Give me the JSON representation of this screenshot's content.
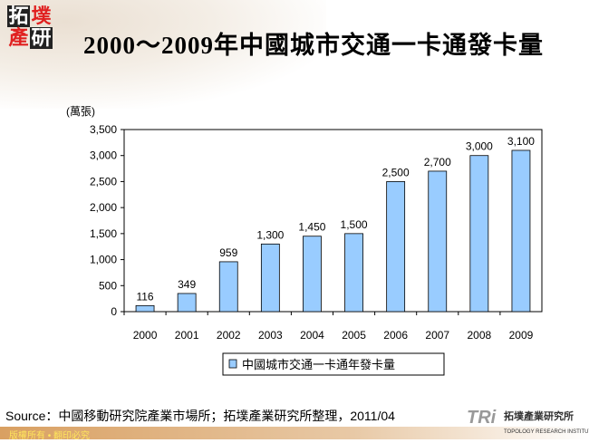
{
  "logo": {
    "chars": [
      "拓",
      "墣",
      "產",
      "研"
    ]
  },
  "title": "2000～2009年中國城市交通一卡通發卡量",
  "chart_data": {
    "type": "bar",
    "title": "2000～2009年中國城市交通一卡通發卡量",
    "ylabel": "(萬張)",
    "categories": [
      "2000",
      "2001",
      "2002",
      "2003",
      "2004",
      "2005",
      "2006",
      "2007",
      "2008",
      "2009"
    ],
    "series": [
      {
        "name": "中國城市交通一卡通年發卡量",
        "values": [
          116,
          349,
          959,
          1300,
          1450,
          1500,
          2500,
          2700,
          3000,
          3100
        ]
      }
    ],
    "data_labels": [
      "116",
      "349",
      "959",
      "1,300",
      "1,450",
      "1,500",
      "2,500",
      "2,700",
      "3,000",
      "3,100"
    ],
    "yticks": [
      "0",
      "500",
      "1,000",
      "1,500",
      "2,000",
      "2,500",
      "3,000",
      "3,500"
    ],
    "ylim": [
      0,
      3500
    ],
    "grid": false,
    "legend": "bottom",
    "bar_color": "#99ccff"
  },
  "source": "Source：中國移動研究院產業市場所；拓墣產業研究所整理，2011/04",
  "footer": "版權所有 • 翻印必究",
  "brand": {
    "mark": "TRi",
    "name": "拓墣產業研究所",
    "sub": "TOPOLOGY RESEARCH INSTITUTE"
  }
}
